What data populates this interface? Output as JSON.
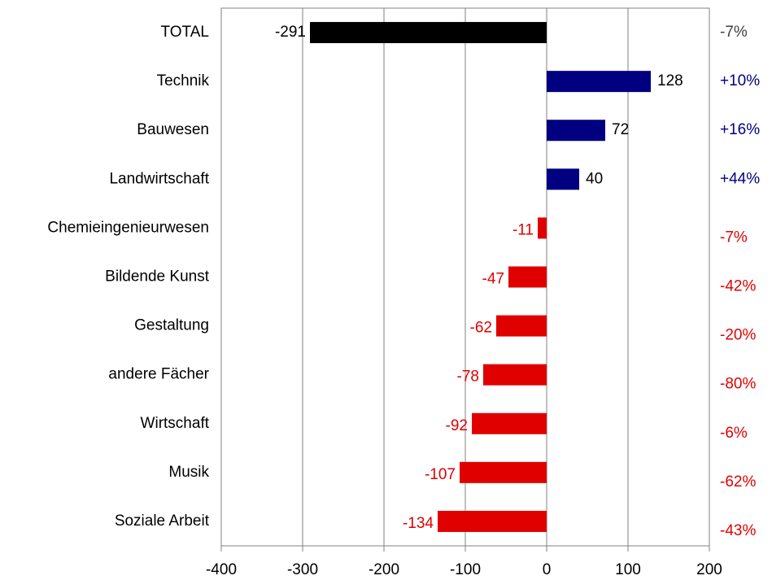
{
  "chart_data": {
    "type": "barh",
    "categories": [
      "TOTAL",
      "Technik",
      "Bauwesen",
      "Landwirtschaft",
      "Chemieingenieurwesen",
      "Bildende Kunst",
      "Gestaltung",
      "andere Fächer",
      "Wirtschaft",
      "Musik",
      "Soziale Arbeit"
    ],
    "values": [
      -291,
      128,
      72,
      40,
      -11,
      -47,
      -62,
      -78,
      -92,
      -107,
      -134
    ],
    "colors": [
      "#000000",
      "#000080",
      "#000080",
      "#000080",
      "#e00000",
      "#e00000",
      "#e00000",
      "#e00000",
      "#e00000",
      "#e00000",
      "#e00000"
    ],
    "percent_labels": [
      "-7%",
      "+10%",
      "+16%",
      "+44%",
      "-7%",
      "-42%",
      "-20%",
      "-80%",
      "-6%",
      "-62%",
      "-43%"
    ],
    "xlim": [
      -400,
      200
    ],
    "xticks": [
      -400,
      -300,
      -200,
      -100,
      0,
      100,
      200
    ],
    "grid": true
  }
}
